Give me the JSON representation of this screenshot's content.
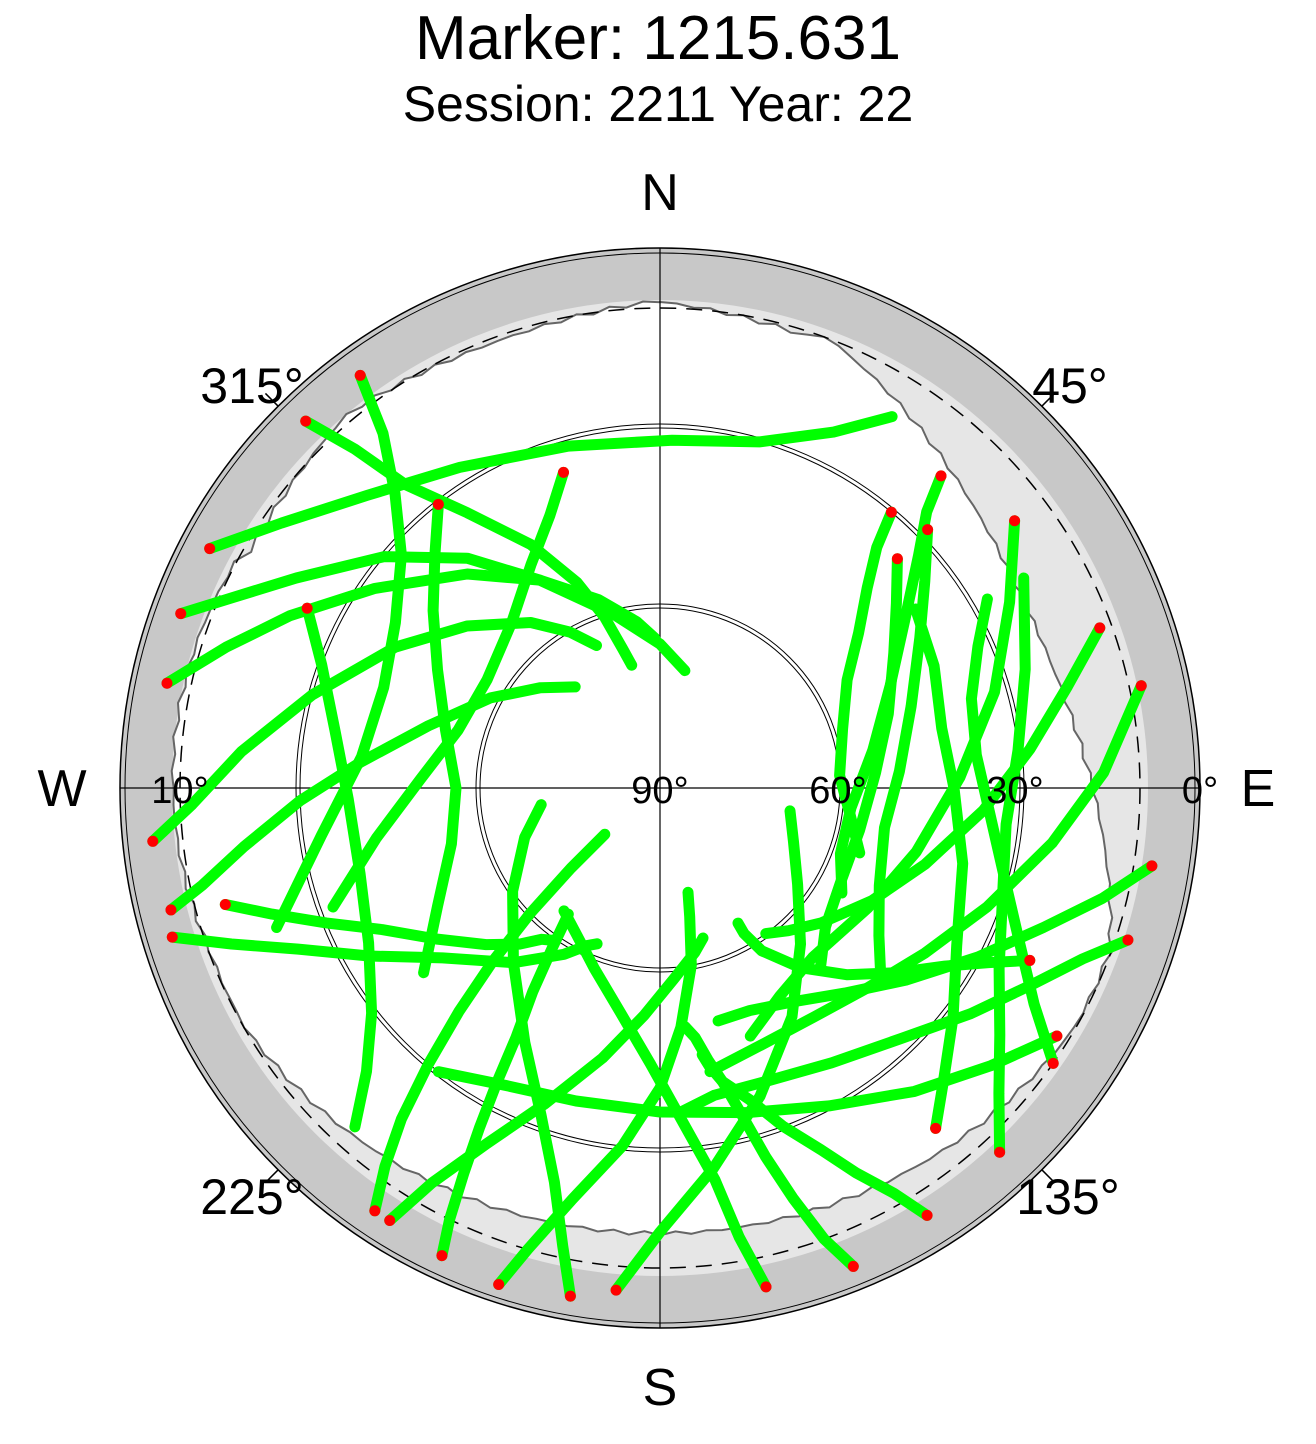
{
  "chart_data": {
    "type": "scatter",
    "projection": "polar-skyplot",
    "title": "Marker: 1215.631",
    "subtitle": "Session: 2211 Year: 22",
    "compass": {
      "north": "N",
      "east": "E",
      "south": "S",
      "west": "W"
    },
    "azimuth_labels": [
      {
        "azimuth": 45,
        "text": "45°"
      },
      {
        "azimuth": 135,
        "text": "135°"
      },
      {
        "azimuth": 225,
        "text": "225°"
      },
      {
        "azimuth": 315,
        "text": "315°"
      }
    ],
    "elevation_labels": [
      {
        "elevation": 0,
        "text": "0°"
      },
      {
        "elevation": 30,
        "text": "30°"
      },
      {
        "elevation": 60,
        "text": "60°"
      },
      {
        "elevation": 90,
        "text": "90°"
      },
      {
        "elevation": 10,
        "text": "10°"
      }
    ],
    "elevation_rings": [
      30,
      60
    ],
    "cutoff_elevation": 10,
    "elevation_range": [
      0,
      90
    ],
    "colors": {
      "track": "#00ff00",
      "track_start": "#ff0000",
      "horizon_band": "#c8c8c8",
      "obstruction": "#e6e6e6"
    },
    "tracks": [
      {
        "az": [
          324,
          322,
          318,
          312,
          302,
          290,
          276,
          262,
          250
        ],
        "el": [
          5,
          15,
          24,
          32,
          38,
          41,
          40,
          33,
          22
        ]
      },
      {
        "az": [
          316,
          318,
          320,
          325,
          332,
          338,
          342,
          345,
          347
        ],
        "el": [
          5,
          14,
          24,
          34,
          44,
          53,
          60,
          66,
          69
        ]
      },
      {
        "az": [
          298,
          305,
          315,
          328,
          345,
          2,
          16,
          26,
          32
        ],
        "el": [
          5,
          13,
          21,
          27,
          31,
          32,
          30,
          24,
          17
        ]
      },
      {
        "az": [
          290,
          294,
          300,
          310,
          320,
          330,
          345,
          0,
          12
        ],
        "el": [
          5,
          12,
          20,
          30,
          40,
          50,
          60,
          66,
          70
        ]
      },
      {
        "az": [
          282,
          288,
          295,
          305,
          318,
          330,
          342,
          352,
          358
        ],
        "el": [
          6,
          14,
          22,
          32,
          42,
          50,
          57,
          62,
          65
        ]
      },
      {
        "az": [
          264,
          268,
          275,
          285,
          298,
          310,
          322,
          330,
          336
        ],
        "el": [
          5,
          12,
          20,
          30,
          40,
          48,
          55,
          60,
          64
        ]
      },
      {
        "az": [
          256,
          258,
          262,
          268,
          275,
          285,
          298,
          310,
          320
        ],
        "el": [
          6,
          12,
          20,
          30,
          40,
          50,
          58,
          64,
          68
        ]
      },
      {
        "az": [
          253,
          250,
          246,
          240,
          232,
          220,
          210,
          205,
          202
        ],
        "el": [
          5,
          14,
          24,
          34,
          44,
          52,
          58,
          61,
          62
        ]
      },
      {
        "az": [
          255,
          252,
          248,
          243,
          236,
          228,
          222,
          218,
          215
        ],
        "el": [
          15,
          22,
          30,
          38,
          45,
          51,
          55,
          58,
          59
        ]
      },
      {
        "az": [
          297,
          290,
          280,
          268,
          254,
          242,
          232,
          226,
          222
        ],
        "el": [
          24,
          30,
          35,
          38,
          38,
          35,
          29,
          22,
          14
        ]
      },
      {
        "az": [
          343,
          338,
          330,
          318,
          302,
          286,
          272,
          260,
          250
        ],
        "el": [
          35,
          41,
          47,
          53,
          56,
          55,
          50,
          42,
          32
        ]
      },
      {
        "az": [
          322,
          316,
          308,
          298,
          285,
          270,
          255,
          242,
          232
        ],
        "el": [
          30,
          36,
          42,
          48,
          53,
          56,
          54,
          48,
          40
        ]
      },
      {
        "az": [
          214,
          216,
          218,
          220,
          222,
          224,
          226,
          228,
          230
        ],
        "el": [
          5,
          12,
          20,
          30,
          40,
          50,
          60,
          70,
          78
        ]
      },
      {
        "az": [
          205,
          206,
          207,
          208,
          209,
          210,
          212,
          214,
          216
        ],
        "el": [
          4,
          10,
          18,
          26,
          34,
          42,
          50,
          58,
          64
        ]
      },
      {
        "az": [
          212,
          210,
          206,
          200,
          192,
          184,
          176,
          168,
          164
        ],
        "el": [
          5,
          14,
          24,
          34,
          44,
          52,
          58,
          62,
          64
        ]
      },
      {
        "az": [
          198,
          196,
          192,
          186,
          180,
          175,
          170,
          167,
          165
        ],
        "el": [
          3,
          10,
          20,
          30,
          40,
          50,
          60,
          68,
          72
        ]
      },
      {
        "az": [
          190,
          192,
          195,
          200,
          208,
          220,
          235,
          250,
          262
        ],
        "el": [
          4,
          12,
          22,
          32,
          42,
          52,
          60,
          66,
          70
        ]
      },
      {
        "az": [
          185,
          180,
          172,
          162,
          150,
          138,
          125,
          112,
          100
        ],
        "el": [
          6,
          16,
          26,
          36,
          46,
          55,
          62,
          66,
          68
        ]
      },
      {
        "az": [
          168,
          170,
          172,
          176,
          182,
          190,
          200,
          210,
          218
        ],
        "el": [
          5,
          14,
          24,
          34,
          44,
          52,
          58,
          62,
          64
        ]
      },
      {
        "az": [
          158,
          160,
          162,
          164,
          166,
          168,
          170,
          172,
          174
        ],
        "el": [
          4,
          10,
          18,
          26,
          34,
          40,
          44,
          48,
          50
        ]
      },
      {
        "az": [
          148,
          150,
          153,
          156,
          160,
          164,
          168,
          170,
          171
        ],
        "el": [
          6,
          12,
          18,
          24,
          30,
          36,
          40,
          43,
          45
        ]
      },
      {
        "az": [
          137,
          132,
          126,
          118,
          108,
          96,
          84,
          72,
          60
        ],
        "el": [
          7,
          14,
          20,
          26,
          30,
          32,
          30,
          26,
          20
        ]
      },
      {
        "az": [
          125,
          120,
          113,
          104,
          94,
          84,
          74,
          66,
          60
        ],
        "el": [
          10,
          18,
          25,
          31,
          35,
          37,
          36,
          32,
          27
        ]
      },
      {
        "az": [
          115,
          118,
          122,
          128,
          135,
          142,
          148,
          150,
          150
        ],
        "el": [
          22,
          28,
          34,
          40,
          46,
          52,
          58,
          62,
          64
        ]
      },
      {
        "az": [
          141,
          136,
          128,
          118,
          104,
          90,
          78,
          66,
          55
        ],
        "el": [
          17,
          22,
          28,
          34,
          38,
          41,
          42,
          40,
          38
        ]
      },
      {
        "az": [
          42,
          44,
          48,
          55,
          66,
          80,
          96,
          110,
          120
        ],
        "el": [
          20,
          26,
          32,
          40,
          48,
          54,
          58,
          58,
          55
        ]
      },
      {
        "az": [
          46,
          52,
          60,
          72,
          86,
          100,
          114,
          124,
          130
        ],
        "el": [
          28,
          34,
          40,
          46,
          50,
          52,
          50,
          46,
          42
        ]
      },
      {
        "az": [
          40,
          42,
          46,
          52,
          60,
          72,
          86,
          98,
          108
        ],
        "el": [
          30,
          36,
          42,
          48,
          54,
          58,
          60,
          58,
          55
        ]
      },
      {
        "az": [
          53,
          62,
          74,
          88,
          104,
          120,
          138,
          150,
          160
        ],
        "el": [
          16,
          24,
          32,
          40,
          46,
          50,
          52,
          50,
          46
        ]
      },
      {
        "az": [
          70,
          76,
          84,
          94,
          106,
          118,
          130,
          138,
          144
        ],
        "el": [
          12,
          20,
          28,
          36,
          44,
          50,
          55,
          58,
          60
        ]
      },
      {
        "az": [
          78,
          88,
          98,
          110,
          122,
          134,
          146,
          158,
          170
        ],
        "el": [
          8,
          16,
          24,
          32,
          38,
          42,
          44,
          44,
          42
        ]
      },
      {
        "az": [
          99,
          104,
          110,
          118,
          128,
          138,
          148,
          158,
          166
        ],
        "el": [
          7,
          14,
          22,
          30,
          38,
          44,
          48,
          50,
          50
        ]
      },
      {
        "az": [
          108,
          112,
          118,
          126,
          136,
          148,
          160,
          170,
          176
        ],
        "el": [
          8,
          14,
          20,
          26,
          32,
          36,
          38,
          38,
          36
        ]
      },
      {
        "az": [
          46,
          52,
          60,
          72,
          86,
          102,
          118,
          130,
          138
        ],
        "el": [
          35,
          40,
          45,
          50,
          54,
          56,
          56,
          54,
          50
        ]
      },
      {
        "az": [
          122,
          130,
          140,
          152,
          165,
          180,
          195,
          208,
          218
        ],
        "el": [
          12,
          18,
          24,
          30,
          34,
          36,
          36,
          34,
          30
        ]
      }
    ]
  }
}
